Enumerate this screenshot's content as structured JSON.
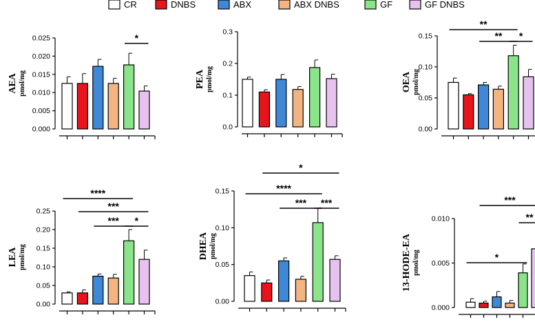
{
  "legend": [
    {
      "name": "CR",
      "color": "#ffffff"
    },
    {
      "name": "DNBS",
      "color": "#e8141b"
    },
    {
      "name": "ABX",
      "color": "#3f88d8"
    },
    {
      "name": "ABX DNBS",
      "color": "#f2b481"
    },
    {
      "name": "GF",
      "color": "#8ae58a"
    },
    {
      "name": "GF DNBS",
      "color": "#e8c2ef"
    }
  ],
  "chart_data": [
    {
      "type": "bar",
      "title": "AEA",
      "ylabel": "AEA",
      "unit": "pmol/mg",
      "categories": [
        "CR",
        "DNBS",
        "ABX",
        "ABX DNBS",
        "GF",
        "GF DNBS"
      ],
      "values": [
        0.0125,
        0.0125,
        0.0172,
        0.0125,
        0.0176,
        0.0104
      ],
      "errors": [
        0.0018,
        0.0027,
        0.0019,
        0.0014,
        0.0032,
        0.0014
      ],
      "ylim": [
        0,
        0.025
      ],
      "ticks": [
        "0.000",
        "0.005",
        "0.010",
        "0.015",
        "0.020",
        "0.025"
      ],
      "significance": [
        {
          "from": 4,
          "to": 5,
          "label": "*"
        }
      ]
    },
    {
      "type": "bar",
      "title": "PEA",
      "ylabel": "PEA",
      "unit": "pmol/mg",
      "categories": [
        "CR",
        "DNBS",
        "ABX",
        "ABX DNBS",
        "GF",
        "GF DNBS"
      ],
      "values": [
        0.15,
        0.11,
        0.15,
        0.118,
        0.187,
        0.152
      ],
      "errors": [
        0.007,
        0.007,
        0.015,
        0.009,
        0.024,
        0.014
      ],
      "ylim": [
        0,
        0.3
      ],
      "ticks": [
        "0.0",
        "0.1",
        "0.2",
        "0.3"
      ],
      "significance": []
    },
    {
      "type": "bar",
      "title": "OEA",
      "ylabel": "OEA",
      "unit": "pmol/mg",
      "categories": [
        "CR",
        "DNBS",
        "ABX",
        "ABX DNBS",
        "GF",
        "GF DNBS"
      ],
      "values": [
        0.075,
        0.055,
        0.071,
        0.064,
        0.118,
        0.084
      ],
      "errors": [
        0.007,
        0.002,
        0.004,
        0.005,
        0.017,
        0.012
      ],
      "ylim": [
        0,
        0.15
      ],
      "ticks": [
        "0.00",
        "0.05",
        "0.10",
        "0.15"
      ],
      "significance": [
        {
          "from": 0,
          "to": 4,
          "label": "**"
        },
        {
          "from": 2,
          "to": 4,
          "label": "**"
        },
        {
          "from": 4,
          "to": 5,
          "label": "*"
        }
      ]
    },
    {
      "type": "bar",
      "title": "LEA",
      "ylabel": "LEA",
      "unit": "pmol/mg",
      "categories": [
        "CR",
        "DNBS",
        "ABX",
        "ABX DNBS",
        "GF",
        "GF DNBS"
      ],
      "values": [
        0.03,
        0.03,
        0.075,
        0.07,
        0.17,
        0.12
      ],
      "errors": [
        0.003,
        0.008,
        0.006,
        0.01,
        0.03,
        0.025
      ],
      "ylim": [
        0,
        0.25
      ],
      "ticks": [
        "0.00",
        "0.05",
        "0.10",
        "0.15",
        "0.20",
        "0.25"
      ],
      "significance": [
        {
          "from": 0,
          "to": 4,
          "label": "****"
        },
        {
          "from": 1,
          "to": 5,
          "label": "***"
        },
        {
          "from": 2,
          "to": 4,
          "label": "***"
        },
        {
          "from": 4,
          "to": 5,
          "label": "*"
        }
      ]
    },
    {
      "type": "bar",
      "title": "DHEA",
      "ylabel": "DHEA",
      "unit": "pmol/mg",
      "categories": [
        "CR",
        "DNBS",
        "ABX",
        "ABX DNBS",
        "GF",
        "GF DNBS"
      ],
      "values": [
        0.035,
        0.025,
        0.055,
        0.03,
        0.107,
        0.057
      ],
      "errors": [
        0.005,
        0.004,
        0.004,
        0.004,
        0.02,
        0.005
      ],
      "ylim": [
        0,
        0.15
      ],
      "ticks": [
        "0.00",
        "0.05",
        "0.10",
        "0.15"
      ],
      "significance": [
        {
          "from": 1,
          "to": 5,
          "label": "*"
        },
        {
          "from": 0,
          "to": 4,
          "label": "****"
        },
        {
          "from": 2,
          "to": 4,
          "label": "***"
        },
        {
          "from": 4,
          "to": 5,
          "label": "***"
        }
      ]
    },
    {
      "type": "bar",
      "title": "13-HODE-EA",
      "ylabel": "13-HODE-EA",
      "unit": "pmol/mg",
      "categories": [
        "CR",
        "DNBS",
        "ABX",
        "ABX DNBS",
        "GF",
        "GF DNBS"
      ],
      "values": [
        0.0006,
        0.0005,
        0.0012,
        0.0005,
        0.0039,
        0.0066
      ],
      "errors": [
        0.0004,
        0.0002,
        0.0006,
        0.0003,
        0.001,
        0.0025
      ],
      "ylim": [
        0,
        0.01
      ],
      "ticks": [
        "0.000",
        "0.005",
        "0.010"
      ],
      "significance": [
        {
          "from": 1,
          "to": 5,
          "label": "***"
        },
        {
          "from": 4,
          "to": 5,
          "label": "**"
        },
        {
          "from": 0,
          "to": 4,
          "label": "*"
        }
      ]
    }
  ]
}
